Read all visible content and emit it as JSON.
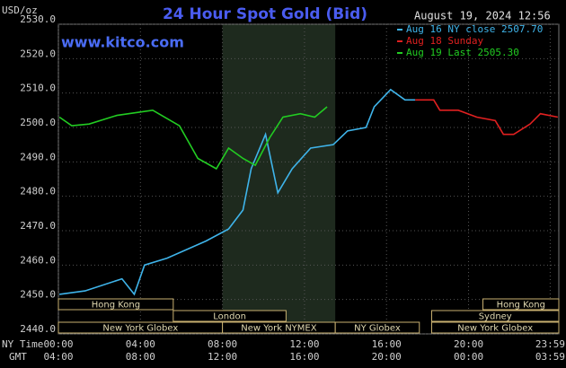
{
  "chart_data": {
    "type": "line",
    "title": "24 Hour Spot Gold (Bid)",
    "subtitle": "www.kitco.com",
    "timestamp": "August 19, 2024 12:56",
    "y_label": "USD/oz",
    "x_label": "NY Time",
    "x2_label": "GMT",
    "xlim": [
      0,
      24.4
    ],
    "ylim": [
      2440,
      2530
    ],
    "yticks": [
      {
        "value": 2440,
        "label": "2440.0"
      },
      {
        "value": 2450,
        "label": "2450.0"
      },
      {
        "value": 2460,
        "label": "2460.0"
      },
      {
        "value": 2470,
        "label": "2470.0"
      },
      {
        "value": 2480,
        "label": "2480.0"
      },
      {
        "value": 2490,
        "label": "2490.0"
      },
      {
        "value": 2500,
        "label": "2500.0"
      },
      {
        "value": 2510,
        "label": "2510.0"
      },
      {
        "value": 2520,
        "label": "2520.0"
      },
      {
        "value": 2530,
        "label": "2530.0"
      }
    ],
    "xticks": [
      {
        "value": 0,
        "label": "00:00"
      },
      {
        "value": 4,
        "label": "04:00"
      },
      {
        "value": 8,
        "label": "08:00"
      },
      {
        "value": 12,
        "label": "12:00"
      },
      {
        "value": 16,
        "label": "16:00"
      },
      {
        "value": 20,
        "label": "20:00"
      },
      {
        "value": 23.98,
        "label": "23:59"
      }
    ],
    "x2ticks": [
      {
        "value": 0,
        "label": "04:00"
      },
      {
        "value": 4,
        "label": "08:00"
      },
      {
        "value": 8,
        "label": "12:00"
      },
      {
        "value": 12,
        "label": "16:00"
      },
      {
        "value": 16,
        "label": "20:00"
      },
      {
        "value": 20,
        "label": "00:00"
      },
      {
        "value": 23.98,
        "label": "03:59"
      }
    ],
    "grid": true,
    "sessions": [
      {
        "label": "Hong Kong",
        "start": 0,
        "end": 5.6
      },
      {
        "label": "London",
        "start": 5.6,
        "end": 11.1
      },
      {
        "label": "New York Globex",
        "start": 0,
        "end": 8
      },
      {
        "label": "New York NYMEX",
        "start": 8,
        "end": 13.5
      },
      {
        "label": "NY Globex",
        "start": 13.5,
        "end": 17.6
      },
      {
        "label": "Hong Kong",
        "start": 20.7,
        "end": 24.4
      },
      {
        "label": "Sydney",
        "start": 18.2,
        "end": 24.4
      },
      {
        "label": "New York Globex",
        "start": 18.2,
        "end": 24.4
      }
    ],
    "series": [
      {
        "name": "Aug 16 NY close 2507.70",
        "color": "#3fb4ea",
        "x": [
          0.05,
          1.3,
          3.1,
          3.7,
          4.2,
          5.3,
          7.2,
          8.3,
          9.0,
          9.4,
          10.1,
          10.7,
          11.4,
          12.3,
          13.4,
          14.1,
          15.0,
          15.4,
          16.2,
          16.9,
          17.4
        ],
        "values": [
          2451.5,
          2452.5,
          2456,
          2451.5,
          2460,
          2462,
          2467,
          2470.5,
          2476,
          2488,
          2498,
          2481,
          2488,
          2494,
          2495,
          2499,
          2500,
          2506,
          2511,
          2508,
          2508
        ]
      },
      {
        "name": "Aug 18 Sunday",
        "color": "#e02020",
        "x": [
          17.4,
          18.3,
          18.6,
          19.5,
          20.4,
          21.3,
          21.7,
          22.2,
          23.0,
          23.5,
          24.35
        ],
        "values": [
          2508,
          2508,
          2505,
          2505,
          2503,
          2502,
          2498,
          2498,
          2501,
          2504,
          2503
        ]
      },
      {
        "name": "Aug 19 Last 2505.30",
        "color": "#22cc22",
        "x": [
          0.05,
          0.65,
          1.5,
          2.85,
          4.6,
          5.9,
          6.8,
          7.7,
          8.3,
          9.0,
          9.6,
          10.3,
          10.95,
          11.8,
          12.5,
          13.1
        ],
        "values": [
          2503,
          2500.5,
          2501,
          2503.5,
          2505,
          2500.5,
          2491,
          2488,
          2494,
          2491,
          2489,
          2497,
          2503,
          2504,
          2503,
          2506
        ]
      }
    ]
  }
}
